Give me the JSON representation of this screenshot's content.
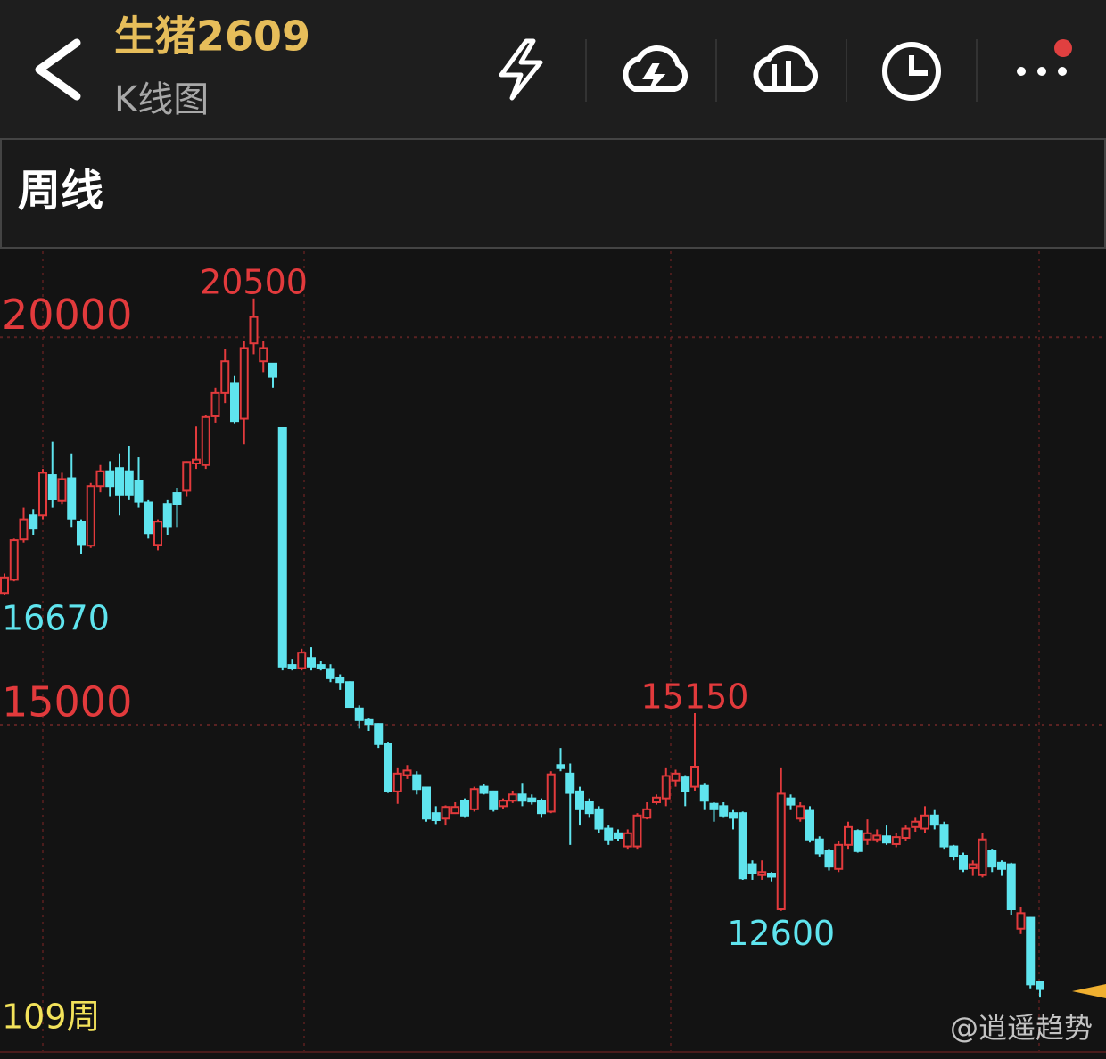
{
  "header": {
    "title": "生猪2609",
    "subtitle": "K线图"
  },
  "tab": "周线",
  "watermark": "@逍遥趋势",
  "chart_data": {
    "type": "candlestick",
    "period_label": "109周",
    "ylim": [
      10780,
      21130
    ],
    "yticks": [
      15000,
      20000
    ],
    "grid": true,
    "up_color": "#e23a3c",
    "down_color": "#5fe4ee",
    "annotations": [
      "20500",
      "15150",
      "12600",
      "16670"
    ],
    "open": [
      16700,
      16870,
      17390,
      17700,
      17700,
      18220,
      17890,
      18180,
      17620,
      17310,
      18080,
      18270,
      18310,
      18270,
      18140,
      17870,
      17320,
      17850,
      17990,
      18020,
      18370,
      18350,
      18980,
      19280,
      19400,
      18950,
      19920,
      19690,
      19660,
      18830,
      15770,
      15730,
      15860,
      15770,
      15720,
      15600,
      15550,
      15210,
      15060,
      15010,
      14750,
      14140,
      14350,
      14350,
      14190,
      13860,
      13790,
      13860,
      14020,
      13910,
      14200,
      14140,
      13950,
      14020,
      14100,
      14050,
      14020,
      13880,
      14480,
      14370,
      14140,
      14000,
      13910,
      13660,
      13600,
      13430,
      13430,
      13800,
      14000,
      14050,
      14280,
      14320,
      14200,
      14210,
      13980,
      13950,
      13860,
      13860,
      13200,
      13060,
      13080,
      12620,
      14050,
      13790,
      13890,
      13520,
      13370,
      13140,
      13450,
      13630,
      13520,
      13520,
      13560,
      13460,
      13540,
      13680,
      13660,
      13830,
      13710,
      13430,
      13310,
      13150,
      13060,
      13370,
      13220,
      13200,
      12370,
      12510,
      11680
    ],
    "high": [
      16950,
      17400,
      17800,
      17780,
      18300,
      18650,
      18250,
      18500,
      17650,
      18120,
      18350,
      18400,
      18500,
      18600,
      18450,
      17900,
      17650,
      17900,
      18050,
      18400,
      18850,
      19000,
      19350,
      19850,
      19500,
      19950,
      20500,
      19950,
      19660,
      18830,
      15850,
      15980,
      16000,
      15820,
      15780,
      15650,
      15560,
      15250,
      15080,
      15020,
      14780,
      14450,
      14480,
      14400,
      14200,
      13950,
      13960,
      14000,
      14050,
      14200,
      14230,
      14150,
      14050,
      14150,
      14250,
      14100,
      14050,
      14400,
      14700,
      14500,
      14200,
      14050,
      13950,
      13700,
      13650,
      13650,
      13860,
      14000,
      14100,
      14450,
      14420,
      14350,
      15150,
      14250,
      14000,
      14000,
      13900,
      13880,
      13250,
      13250,
      13100,
      14450,
      14100,
      14000,
      13950,
      13560,
      13400,
      13500,
      13750,
      13650,
      13780,
      13650,
      13700,
      13600,
      13700,
      13800,
      13950,
      13900,
      13750,
      13450,
      13350,
      13250,
      13600,
      13400,
      13250,
      13220,
      12650,
      12520,
      11700
    ],
    "low": [
      16670,
      16850,
      17350,
      17450,
      17650,
      17800,
      17850,
      17550,
      17200,
      17280,
      18000,
      17950,
      17700,
      17900,
      17800,
      17400,
      17250,
      17450,
      17550,
      17950,
      18300,
      18300,
      18900,
      19150,
      18880,
      18620,
      19780,
      19550,
      19350,
      15700,
      15700,
      15700,
      15700,
      15700,
      15550,
      15450,
      15220,
      14950,
      14920,
      14700,
      14120,
      13980,
      14300,
      14100,
      13750,
      13720,
      13700,
      13850,
      13800,
      13880,
      14100,
      13880,
      13920,
      13990,
      13950,
      13970,
      13800,
      13860,
      14400,
      13450,
      13700,
      13800,
      13600,
      13450,
      13500,
      13400,
      13400,
      13780,
      13970,
      13950,
      14200,
      13950,
      14150,
      13900,
      13750,
      13800,
      13650,
      13000,
      13000,
      13000,
      12980,
      12600,
      13900,
      13750,
      13480,
      13300,
      13120,
      13100,
      13400,
      13350,
      13450,
      13480,
      13450,
      13420,
      13500,
      13620,
      13600,
      13650,
      13400,
      13250,
      13100,
      13050,
      13030,
      13100,
      13050,
      12550,
      12300,
      11600,
      11480
    ],
    "close": [
      16900,
      17380,
      17650,
      17540,
      18250,
      17910,
      18170,
      17660,
      17330,
      18080,
      18270,
      18080,
      17970,
      17970,
      17880,
      17470,
      17620,
      17560,
      17850,
      18390,
      18420,
      18970,
      19280,
      19690,
      18920,
      19860,
      20260,
      19860,
      19490,
      15750,
      15730,
      15930,
      15750,
      15730,
      15600,
      15550,
      15230,
      15060,
      15010,
      14750,
      14140,
      14370,
      14410,
      14170,
      13790,
      13770,
      13940,
      13940,
      13830,
      14170,
      14120,
      13910,
      14020,
      14100,
      14020,
      14010,
      13860,
      14360,
      14440,
      14120,
      13910,
      13860,
      13660,
      13520,
      13540,
      13600,
      13830,
      13910,
      14060,
      14340,
      14370,
      14140,
      14460,
      14020,
      13910,
      13830,
      13800,
      13020,
      13080,
      13100,
      13040,
      14110,
      13970,
      13950,
      13520,
      13340,
      13170,
      13450,
      13680,
      13370,
      13600,
      13570,
      13480,
      13550,
      13660,
      13750,
      13830,
      13710,
      13430,
      13310,
      13140,
      13200,
      13520,
      13170,
      13140,
      12620,
      12570,
      11650,
      11590
    ]
  }
}
